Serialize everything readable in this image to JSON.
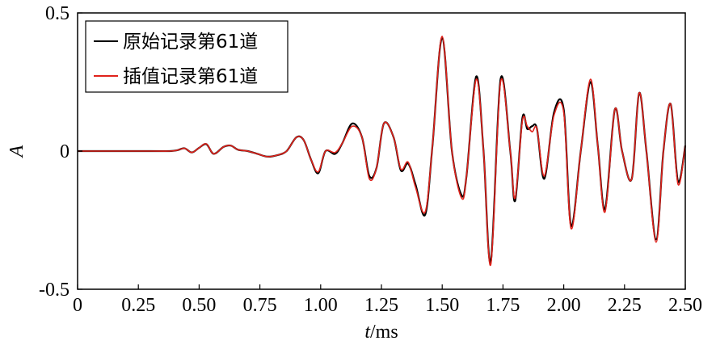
{
  "chart_data": {
    "type": "line",
    "title": "",
    "xlabel": "t/ms",
    "ylabel": "A",
    "xlim": [
      0,
      2.5
    ],
    "ylim": [
      -0.5,
      0.5
    ],
    "x_ticks": [
      0,
      0.25,
      0.5,
      0.75,
      1.0,
      1.25,
      1.5,
      1.75,
      2.0,
      2.25,
      2.5
    ],
    "x_tick_labels": [
      "0",
      "0.25",
      "0.50",
      "0.75",
      "1.00",
      "1.25",
      "1.50",
      "1.75",
      "2.00",
      "2.25",
      "2.50"
    ],
    "y_ticks": [
      -0.5,
      0,
      0.5
    ],
    "y_tick_labels": [
      "-0.5",
      "0",
      "0.5"
    ],
    "grid": false,
    "legend_position": "top-left",
    "series": [
      {
        "name": "原始记录第61道",
        "color": "#000000",
        "x": [
          0,
          0.3,
          0.38,
          0.41,
          0.44,
          0.47,
          0.5,
          0.53,
          0.56,
          0.6,
          0.63,
          0.66,
          0.7,
          0.74,
          0.78,
          0.82,
          0.86,
          0.9,
          0.93,
          0.96,
          0.99,
          1.02,
          1.06,
          1.09,
          1.13,
          1.17,
          1.2,
          1.23,
          1.26,
          1.3,
          1.33,
          1.36,
          1.39,
          1.43,
          1.46,
          1.5,
          1.54,
          1.58,
          1.6,
          1.64,
          1.67,
          1.7,
          1.74,
          1.78,
          1.8,
          1.83,
          1.85,
          1.87,
          1.89,
          1.92,
          1.96,
          2.0,
          2.03,
          2.07,
          2.11,
          2.14,
          2.17,
          2.21,
          2.24,
          2.28,
          2.31,
          2.34,
          2.38,
          2.41,
          2.44,
          2.47,
          2.5
        ],
        "y": [
          0,
          0,
          0,
          0.003,
          0.01,
          -0.005,
          0.012,
          0.025,
          -0.01,
          0.015,
          0.02,
          0.005,
          0.0,
          -0.01,
          -0.02,
          -0.015,
          0.0,
          0.05,
          0.04,
          -0.03,
          -0.08,
          0.0,
          -0.01,
          0.03,
          0.1,
          0.05,
          -0.09,
          -0.06,
          0.1,
          0.05,
          -0.07,
          -0.045,
          -0.12,
          -0.23,
          0.02,
          0.41,
          0.0,
          -0.16,
          -0.09,
          0.27,
          0.0,
          -0.4,
          0.26,
          0.0,
          -0.18,
          0.12,
          0.08,
          0.09,
          0.08,
          -0.1,
          0.14,
          0.15,
          -0.27,
          0.0,
          0.25,
          0.02,
          -0.21,
          0.15,
          0.0,
          -0.1,
          0.21,
          0.0,
          -0.32,
          0.0,
          0.17,
          -0.11,
          0.02
        ]
      },
      {
        "name": "插值记录第61道",
        "color": "#e0221b",
        "x": [
          0,
          0.3,
          0.38,
          0.41,
          0.44,
          0.47,
          0.5,
          0.53,
          0.56,
          0.6,
          0.63,
          0.66,
          0.7,
          0.74,
          0.78,
          0.82,
          0.86,
          0.9,
          0.93,
          0.96,
          0.99,
          1.02,
          1.06,
          1.09,
          1.13,
          1.17,
          1.2,
          1.23,
          1.26,
          1.3,
          1.33,
          1.36,
          1.39,
          1.43,
          1.46,
          1.5,
          1.54,
          1.58,
          1.6,
          1.64,
          1.67,
          1.7,
          1.74,
          1.78,
          1.8,
          1.83,
          1.85,
          1.87,
          1.89,
          1.92,
          1.96,
          2.0,
          2.03,
          2.07,
          2.11,
          2.14,
          2.17,
          2.21,
          2.24,
          2.28,
          2.31,
          2.34,
          2.38,
          2.41,
          2.44,
          2.47,
          2.5
        ],
        "y": [
          0,
          0,
          0,
          0.003,
          0.01,
          -0.005,
          0.012,
          0.026,
          -0.01,
          0.015,
          0.02,
          0.005,
          0.0,
          -0.01,
          -0.02,
          -0.015,
          0.0,
          0.05,
          0.04,
          -0.03,
          -0.075,
          0.0,
          -0.005,
          0.03,
          0.09,
          0.05,
          -0.1,
          -0.06,
          0.1,
          0.05,
          -0.065,
          -0.04,
          -0.13,
          -0.22,
          0.02,
          0.415,
          0.0,
          -0.17,
          -0.09,
          0.26,
          0.0,
          -0.41,
          0.25,
          0.0,
          -0.17,
          0.11,
          0.09,
          0.07,
          0.08,
          -0.09,
          0.13,
          0.14,
          -0.28,
          0.0,
          0.26,
          0.02,
          -0.22,
          0.15,
          0.0,
          -0.1,
          0.21,
          0.0,
          -0.33,
          0.0,
          0.17,
          -0.12,
          0.02
        ]
      }
    ]
  }
}
